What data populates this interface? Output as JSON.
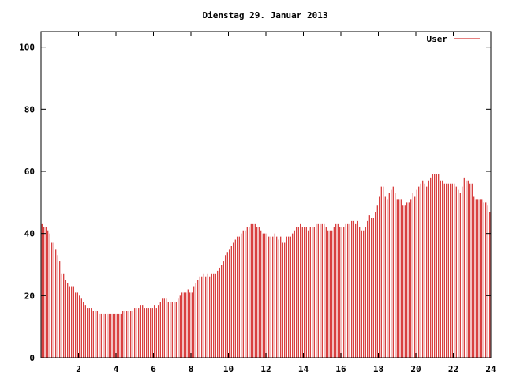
{
  "chart_data": {
    "type": "bar",
    "title": "Dienstag 29. Januar 2013",
    "xlabel": "",
    "ylabel": "",
    "xlim": [
      0,
      24
    ],
    "ylim": [
      0,
      105
    ],
    "x_ticks": [
      "2",
      "4",
      "6",
      "8",
      "10",
      "12",
      "14",
      "16",
      "18",
      "20",
      "22",
      "24"
    ],
    "y_ticks": [
      "0",
      "20",
      "40",
      "60",
      "80",
      "100"
    ],
    "grid": false,
    "legend_position": "top-right",
    "series": [
      {
        "name": "User",
        "color": "#cc0000",
        "sample_interval_hours": 0.0833,
        "values": [
          43,
          42,
          42,
          41,
          40,
          37,
          37,
          35,
          33,
          31,
          27,
          27,
          25,
          24,
          23,
          23,
          23,
          21,
          21,
          20,
          19,
          18,
          17,
          16,
          16,
          16,
          15,
          15,
          15,
          14,
          14,
          14,
          14,
          14,
          14,
          14,
          14,
          14,
          14,
          14,
          14,
          15,
          15,
          15,
          15,
          15,
          15,
          16,
          16,
          16,
          17,
          17,
          16,
          16,
          16,
          16,
          16,
          17,
          16,
          17,
          18,
          19,
          19,
          19,
          18,
          18,
          18,
          18,
          18,
          19,
          20,
          21,
          21,
          21,
          22,
          21,
          21,
          23,
          24,
          25,
          26,
          26,
          27,
          26,
          27,
          26,
          27,
          27,
          27,
          28,
          29,
          30,
          31,
          33,
          34,
          35,
          36,
          37,
          38,
          39,
          39,
          40,
          41,
          41,
          42,
          42,
          43,
          43,
          43,
          42,
          42,
          41,
          40,
          40,
          40,
          39,
          39,
          39,
          40,
          39,
          38,
          39,
          37,
          37,
          39,
          39,
          39,
          40,
          41,
          42,
          42,
          43,
          42,
          42,
          42,
          41,
          42,
          42,
          42,
          43,
          43,
          43,
          43,
          43,
          42,
          41,
          41,
          41,
          42,
          43,
          43,
          42,
          42,
          42,
          43,
          43,
          43,
          44,
          44,
          43,
          44,
          42,
          41,
          41,
          42,
          44,
          46,
          45,
          45,
          47,
          49,
          52,
          55,
          55,
          52,
          51,
          53,
          54,
          55,
          53,
          51,
          51,
          51,
          49,
          49,
          50,
          50,
          51,
          53,
          52,
          54,
          55,
          56,
          57,
          56,
          55,
          57,
          58,
          59,
          59,
          59,
          59,
          57,
          57,
          56,
          56,
          56,
          56,
          56,
          56,
          55,
          54,
          53,
          55,
          58,
          57,
          57,
          56,
          56,
          52,
          51,
          51,
          51,
          51,
          50,
          50,
          49,
          47
        ]
      }
    ]
  }
}
